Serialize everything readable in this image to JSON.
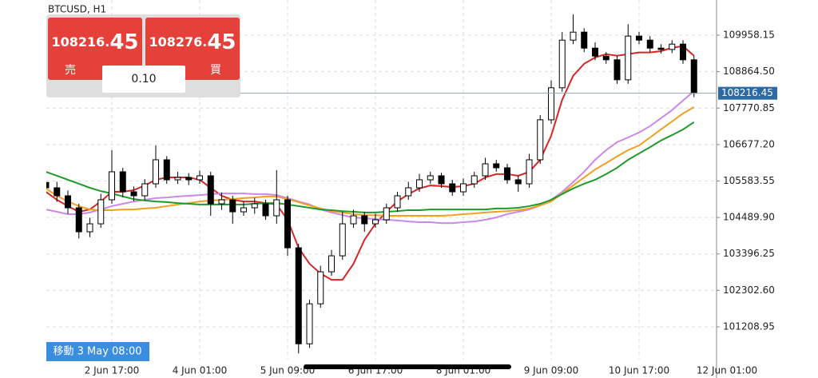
{
  "chart_data": {
    "type": "candlestick",
    "title": "BTCUSD, H1",
    "categories": [
      null,
      null,
      null,
      null,
      null,
      null,
      "2 Jun 17:00",
      null,
      null,
      null,
      null,
      null,
      null,
      null,
      "4 Jun 01:00",
      null,
      null,
      null,
      null,
      null,
      null,
      null,
      "5 Jun 09:00",
      null,
      null,
      null,
      null,
      null,
      null,
      null,
      "6 Jun 17:00",
      null,
      null,
      null,
      null,
      null,
      null,
      null,
      "8 Jun 01:00",
      null,
      null,
      null,
      null,
      null,
      null,
      null,
      "9 Jun 09:00",
      null,
      null,
      null,
      null,
      null,
      null,
      null,
      "10 Jun 17:00",
      null,
      null,
      null,
      null,
      null,
      null,
      null,
      "12 Jun 01:00"
    ],
    "open": [
      105540,
      105380,
      105140,
      104780,
      104060,
      104300,
      105020,
      105860,
      105260,
      105140,
      105500,
      106220,
      105620,
      105690,
      105620,
      105740,
      104900,
      105020,
      104660,
      104780,
      104900,
      104540,
      105020,
      103580,
      100700,
      101900,
      102860,
      103340,
      104300,
      104540,
      104300,
      104420,
      104780,
      105140,
      105380,
      105620,
      105740,
      105500,
      105260,
      105500,
      105740,
      106100,
      105980,
      105620,
      105500,
      106220,
      107420,
      108380,
      109810,
      110050,
      109570,
      109330,
      109220,
      108620,
      109930,
      109810,
      109570,
      109530,
      109690,
      109220,
      null,
      null,
      null
    ],
    "high": [
      105780,
      105560,
      105300,
      104900,
      104480,
      105200,
      106510,
      105980,
      105420,
      105640,
      106650,
      106330,
      105860,
      105820,
      105900,
      105860,
      105240,
      105140,
      104960,
      105080,
      105020,
      105910,
      105140,
      103700,
      102020,
      103040,
      103520,
      104660,
      104720,
      104660,
      104600,
      104900,
      105260,
      105560,
      105800,
      105860,
      105830,
      105620,
      105660,
      105860,
      106280,
      106220,
      106100,
      105740,
      106400,
      107560,
      108600,
      110050,
      110580,
      110170,
      109740,
      109450,
      109340,
      110290,
      110060,
      109930,
      109690,
      109810,
      109810,
      109340,
      null,
      null,
      null
    ],
    "low": [
      105200,
      104960,
      104600,
      103860,
      103900,
      104180,
      104900,
      105100,
      104980,
      105020,
      105380,
      105500,
      105500,
      105460,
      105500,
      104540,
      104720,
      104300,
      104540,
      104600,
      104420,
      104300,
      103340,
      100410,
      100580,
      101780,
      102740,
      103220,
      104180,
      104060,
      104180,
      104300,
      104660,
      105020,
      105260,
      105500,
      105380,
      105140,
      105140,
      105380,
      105620,
      105860,
      105500,
      105260,
      105380,
      106100,
      107300,
      108260,
      109690,
      109450,
      109210,
      109100,
      108500,
      108500,
      109690,
      109450,
      109410,
      109420,
      109100,
      108100,
      null,
      null,
      null
    ],
    "close": [
      105380,
      105140,
      104780,
      104060,
      104300,
      105020,
      105860,
      105260,
      105140,
      105500,
      106220,
      105620,
      105690,
      105620,
      105740,
      104900,
      105020,
      104660,
      104780,
      104900,
      104540,
      105020,
      103580,
      100700,
      101900,
      102860,
      103340,
      104300,
      104540,
      104300,
      104420,
      104780,
      105140,
      105380,
      105620,
      105740,
      105500,
      105260,
      105500,
      105740,
      106100,
      105980,
      105620,
      105500,
      106220,
      107420,
      108380,
      109810,
      110050,
      109570,
      109330,
      109220,
      108620,
      109930,
      109810,
      109570,
      109530,
      109690,
      109220,
      108216.45,
      null,
      null,
      null
    ],
    "up_color": "#ffffff",
    "down_color": "#000000",
    "series": [
      {
        "color": "#d62728",
        "values": [
          105260,
          105020,
          104830,
          104660,
          104730,
          104970,
          105260,
          105260,
          105310,
          105450,
          105620,
          105690,
          105690,
          105690,
          105620,
          105380,
          105140,
          105020,
          104970,
          104970,
          104920,
          104880,
          104420,
          103580,
          103100,
          102810,
          102620,
          102620,
          103100,
          103820,
          104300,
          104660,
          104970,
          105190,
          105360,
          105450,
          105430,
          105400,
          105430,
          105500,
          105690,
          105790,
          105790,
          105740,
          105860,
          106220,
          106940,
          108020,
          108740,
          109100,
          109290,
          109390,
          109340,
          109390,
          109440,
          109440,
          109480,
          109580,
          109630,
          109340,
          null,
          null,
          null
        ]
      },
      {
        "color": "#cc88e8",
        "values": [
          104730,
          104660,
          104590,
          104590,
          104640,
          104730,
          104830,
          104900,
          104970,
          105020,
          105070,
          105090,
          105120,
          105140,
          105160,
          105190,
          105210,
          105210,
          105210,
          105190,
          105190,
          105160,
          105070,
          104970,
          104880,
          104730,
          104640,
          104560,
          104490,
          104470,
          104440,
          104420,
          104400,
          104370,
          104350,
          104350,
          104320,
          104320,
          104350,
          104370,
          104420,
          104490,
          104590,
          104660,
          104730,
          104850,
          105020,
          105260,
          105550,
          105860,
          106220,
          106510,
          106750,
          106890,
          107040,
          107230,
          107470,
          107710,
          108000,
          108280,
          null,
          null,
          null
        ]
      },
      {
        "color": "#f0a020",
        "values": [
          105360,
          105140,
          104970,
          104830,
          104730,
          104710,
          104710,
          104730,
          104730,
          104760,
          104780,
          104830,
          104880,
          104920,
          104970,
          105000,
          105020,
          105040,
          105070,
          105090,
          105120,
          105120,
          105040,
          104950,
          104850,
          104760,
          104680,
          104640,
          104590,
          104560,
          104560,
          104540,
          104540,
          104540,
          104540,
          104540,
          104540,
          104560,
          104590,
          104610,
          104640,
          104660,
          104680,
          104710,
          104760,
          104850,
          104970,
          105210,
          105450,
          105690,
          105930,
          106120,
          106320,
          106510,
          106650,
          106890,
          107130,
          107370,
          107610,
          107800,
          null,
          null,
          null
        ]
      },
      {
        "color": "#1f9a2a",
        "values": [
          105860,
          105740,
          105620,
          105500,
          105380,
          105280,
          105210,
          105120,
          105040,
          105000,
          104970,
          104950,
          104920,
          104900,
          104880,
          104880,
          104880,
          104880,
          104880,
          104900,
          104920,
          104920,
          104880,
          104830,
          104780,
          104730,
          104710,
          104680,
          104660,
          104640,
          104640,
          104660,
          104680,
          104710,
          104710,
          104730,
          104730,
          104730,
          104730,
          104730,
          104730,
          104760,
          104760,
          104780,
          104830,
          104900,
          105020,
          105190,
          105360,
          105500,
          105620,
          105790,
          105980,
          106220,
          106410,
          106600,
          106800,
          106960,
          107130,
          107350,
          null,
          null,
          null
        ]
      }
    ],
    "ylim": [
      100225.6,
      111013.4
    ],
    "yticks": [
      109958.15,
      {
        "value": 108864.5,
        "label": "108864.50"
      },
      107770.85,
      {
        "value": 106677.2,
        "label": "106677.20"
      },
      105583.55,
      {
        "value": 104489.9,
        "label": "104489.90"
      },
      103396.25,
      {
        "value": 102302.6,
        "label": "102302.60"
      },
      101208.95
    ],
    "grid": true,
    "price_line": 108216.45
  },
  "trade_panel": {
    "sell_price_main": "108216.",
    "sell_price_pips": "45",
    "sell_label": "売",
    "buy_price_main": "108276.",
    "buy_price_pips": "45",
    "buy_label": "買",
    "volume": "0.10"
  },
  "scroll_label": "移動 3 May 08:00"
}
